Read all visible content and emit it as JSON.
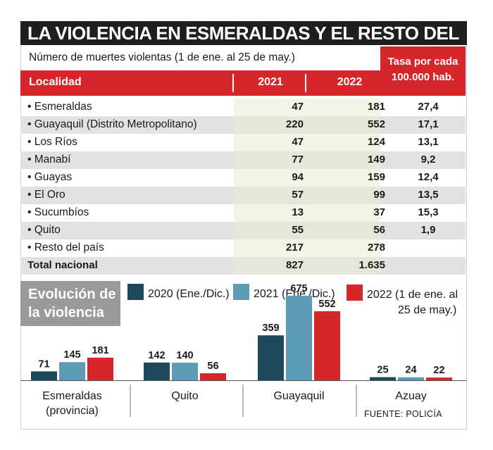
{
  "title": "LA VIOLENCIA EN ESMERALDAS Y EL RESTO DEL PAÍS",
  "subtitle": "Número de muertes violentas  (1 de ene. al 25 de may.)",
  "rate_header": [
    "Tasa por cada",
    "100.000 hab."
  ],
  "table": {
    "headers": {
      "locality": "Localidad",
      "y2021": "2021",
      "y2022": "2022"
    },
    "rows": [
      {
        "name": "• Esmeraldas",
        "y2021": "47",
        "y2022": "181",
        "rate": "27,4"
      },
      {
        "name": "• Guayaquil (Distrito Metropolitano)",
        "y2021": "220",
        "y2022": "552",
        "rate": "17,1"
      },
      {
        "name": "• Los Ríos",
        "y2021": "47",
        "y2022": "124",
        "rate": "13,1"
      },
      {
        "name": "• Manabí",
        "y2021": "77",
        "y2022": "149",
        "rate": "9,2"
      },
      {
        "name": "• Guayas",
        "y2021": "94",
        "y2022": "159",
        "rate": "12,4"
      },
      {
        "name": "• El Oro",
        "y2021": "57",
        "y2022": "99",
        "rate": "13,5"
      },
      {
        "name": "• Sucumbíos",
        "y2021": "13",
        "y2022": "37",
        "rate": "15,3"
      },
      {
        "name": "• Quito",
        "y2021": "55",
        "y2022": "56",
        "rate": "1,9"
      },
      {
        "name": "• Resto del país",
        "y2021": "217",
        "y2022": "278",
        "rate": ""
      }
    ],
    "total": {
      "name": "Total nacional",
      "y2021": "827",
      "y2022": "1.635",
      "rate": ""
    }
  },
  "evolution": {
    "line1": "Evolución de",
    "line2": "la violencia"
  },
  "legend": {
    "s2020": "2020 (Ene./Dic.)",
    "s2021": "2021 (Ene./Dic.)",
    "s2022_line1": "2022 (1 de ene. al",
    "s2022_line2": "25 de may.)"
  },
  "source": "FUENTE: POLICÍA",
  "colors": {
    "s2020": "#1d4a5a",
    "s2021": "#5d9bb6",
    "s2022": "#d7262b",
    "header": "#d7262b",
    "title_bg": "#1f1f1f"
  },
  "chart_data": {
    "type": "bar",
    "title": "Evolución de la violencia",
    "categories": [
      [
        "Esmeraldas",
        "(provincia)"
      ],
      [
        "Quito"
      ],
      [
        "Guayaquil"
      ],
      [
        "Azuay"
      ]
    ],
    "series": [
      {
        "name": "2020 (Ene./Dic.)",
        "color": "#1d4a5a",
        "values": [
          71,
          142,
          359,
          25
        ]
      },
      {
        "name": "2021 (Ene./Dic.)",
        "color": "#5d9bb6",
        "values": [
          145,
          140,
          675,
          24
        ]
      },
      {
        "name": "2022 (1 de ene. al 25 de may.)",
        "color": "#d7262b",
        "values": [
          181,
          56,
          552,
          22
        ]
      }
    ],
    "ylim": [
      0,
      700
    ],
    "xlabel": "",
    "ylabel": ""
  }
}
